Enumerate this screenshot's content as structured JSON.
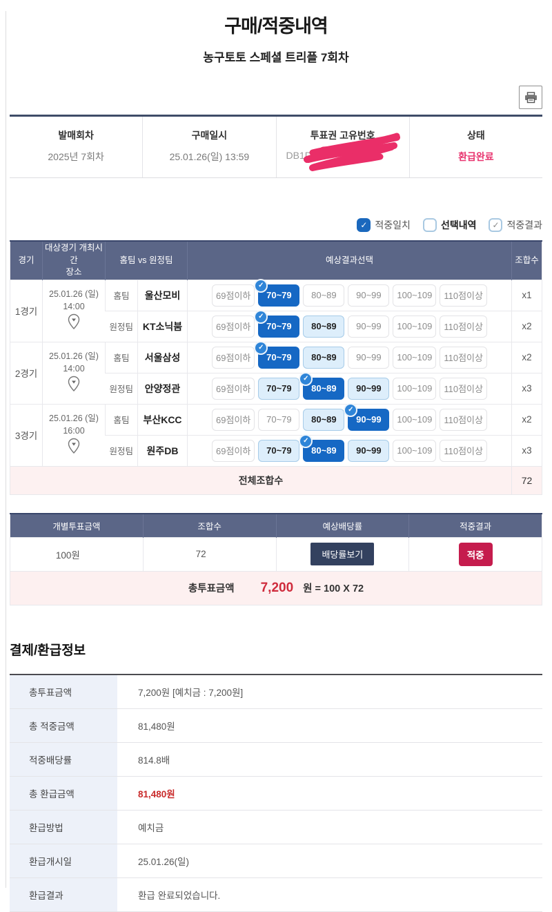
{
  "page": {
    "title": "구매/적중내역",
    "subtitle": "농구토토 스페셜 트리플 7회차"
  },
  "info": {
    "columns": [
      {
        "label": "발매회차",
        "value": "2025년 7회차"
      },
      {
        "label": "구매일시",
        "value": "25.01.26(일) 13:59"
      },
      {
        "label": "투표권 고유번호",
        "value": "DB1D",
        "masked": true
      },
      {
        "label": "상태",
        "value": "환급완료",
        "highlight": true
      }
    ]
  },
  "legend": {
    "items": [
      {
        "label": "적중일치",
        "state": "checked"
      },
      {
        "label": "선택내역",
        "state": "empty",
        "bold": true
      },
      {
        "label": "적중결과",
        "state": "checked-light"
      }
    ]
  },
  "games_table": {
    "headers": {
      "game": "경기",
      "schedule_line1": "대상경기 개최시간",
      "schedule_line2": "장소",
      "teams": "홈팀 vs 원정팀",
      "selection": "예상결과선택",
      "combos": "조합수"
    },
    "score_options": [
      "69점이하",
      "70~79",
      "80~89",
      "90~99",
      "100~109",
      "110점이상"
    ],
    "games": [
      {
        "no": "1경기",
        "date": "25.01.26 (일)",
        "time": "14:00",
        "rows": [
          {
            "side": "홈팀",
            "team": "울산모비",
            "hit_index": 1,
            "light_indexes": [],
            "combo": "x1"
          },
          {
            "side": "원정팀",
            "team": "KT소닉붐",
            "hit_index": 1,
            "light_indexes": [
              2
            ],
            "combo": "x2"
          }
        ]
      },
      {
        "no": "2경기",
        "date": "25.01.26 (일)",
        "time": "14:00",
        "rows": [
          {
            "side": "홈팀",
            "team": "서울삼성",
            "hit_index": 1,
            "light_indexes": [
              2
            ],
            "combo": "x2"
          },
          {
            "side": "원정팀",
            "team": "안양정관",
            "hit_index": 2,
            "light_indexes": [
              1,
              3
            ],
            "combo": "x3"
          }
        ]
      },
      {
        "no": "3경기",
        "date": "25.01.26 (일)",
        "time": "16:00",
        "rows": [
          {
            "side": "홈팀",
            "team": "부산KCC",
            "hit_index": 3,
            "light_indexes": [
              2
            ],
            "combo": "x2"
          },
          {
            "side": "원정팀",
            "team": "원주DB",
            "hit_index": 2,
            "light_indexes": [
              1,
              3
            ],
            "combo": "x3"
          }
        ]
      }
    ],
    "total_label": "전체조합수",
    "total_value": "72"
  },
  "summary_table": {
    "headers": [
      "개별투표금액",
      "조합수",
      "예상배당률",
      "적중결과"
    ],
    "amount": "100원",
    "combos": "72",
    "odds_button_label": "배당률보기",
    "result_badge": "적중",
    "total_label": "총투표금액",
    "total_amount": "7,200",
    "total_formula": "원 = 100 X 72"
  },
  "payment": {
    "title": "결제/환급정보",
    "rows": [
      {
        "label": "총투표금액",
        "value": "7,200원 [예치금 : 7,200원]"
      },
      {
        "label": "총 적중금액",
        "value": "81,480원"
      },
      {
        "label": "적중배당률",
        "value": "814.8배"
      },
      {
        "label": "총 환급금액",
        "value": "81,480원",
        "highlight": true
      },
      {
        "label": "환급방법",
        "value": "예치금"
      },
      {
        "label": "환급개시일",
        "value": "25.01.26(일)"
      },
      {
        "label": "환급결과",
        "value": "환급 완료되었습니다."
      }
    ]
  },
  "icons": {
    "print": "printer-icon",
    "pin": "location-pin-icon",
    "check": "✓"
  },
  "colors": {
    "header_slate": "#5b6687",
    "selected_blue": "#1668c4",
    "selected_light_blue": "#ddeefb",
    "crimson_badge": "#c51c4d",
    "status_pink": "#e8336e",
    "red_amount": "#c92a2a",
    "scribble_pink": "#ea2e68",
    "pink_row": "#fdf1f1"
  }
}
